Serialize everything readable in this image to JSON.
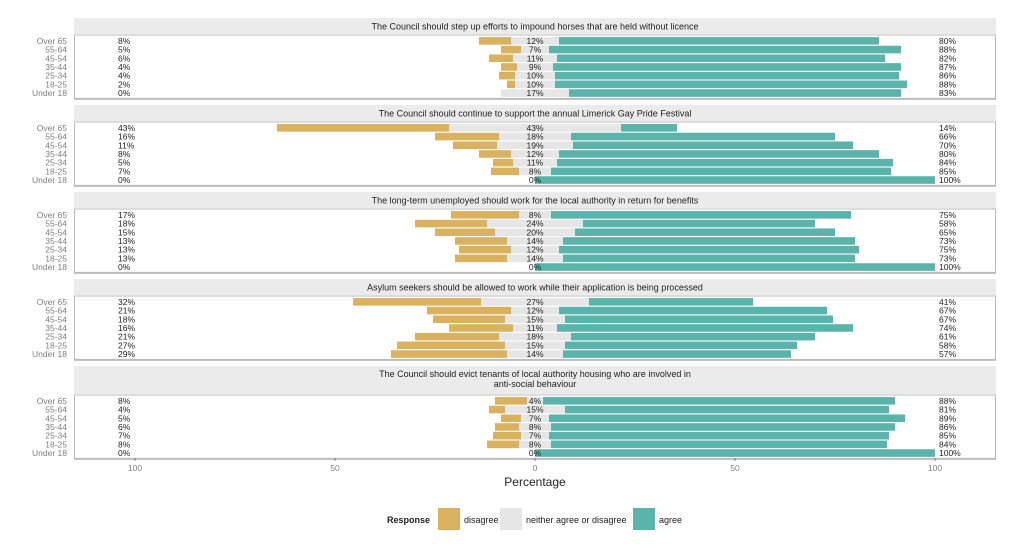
{
  "colors": {
    "disagree": "#D9B260",
    "neutral": "#E6E6E6",
    "agree": "#5AB4AC",
    "strip_bg": "#EBEBEB",
    "panel_border": "#BBBBBB",
    "axis_text": "#7F7F7F",
    "text": "#222222"
  },
  "chart_data": {
    "type": "bar",
    "orientation": "horizontal",
    "stacking": "diverging",
    "xlabel": "Percentage",
    "xlim": [
      -100,
      100
    ],
    "x_ticks": [
      {
        "value": -100,
        "label": "100"
      },
      {
        "value": -50,
        "label": "50"
      },
      {
        "value": 0,
        "label": "0"
      },
      {
        "value": 50,
        "label": "50"
      },
      {
        "value": 100,
        "label": "100"
      }
    ],
    "categories": [
      "Over 65",
      "55-64",
      "45-54",
      "35-44",
      "25-34",
      "18-25",
      "Under 18"
    ],
    "legend": {
      "title": "Response",
      "position": "bottom",
      "items": [
        {
          "key": "disagree",
          "label": "disagree"
        },
        {
          "key": "neutral",
          "label": "neither agree or disagree"
        },
        {
          "key": "agree",
          "label": "agree"
        }
      ]
    },
    "panels": [
      {
        "title": "The Council should step up efforts to impound horses that are held without licence",
        "disagree": [
          8,
          5,
          6,
          4,
          4,
          2,
          0
        ],
        "neutral": [
          12,
          7,
          11,
          9,
          10,
          10,
          17
        ],
        "agree": [
          80,
          88,
          82,
          87,
          86,
          88,
          83
        ]
      },
      {
        "title": "The Council should continue to support the annual Limerick Gay Pride Festival",
        "disagree": [
          43,
          16,
          11,
          8,
          5,
          7,
          0
        ],
        "neutral": [
          43,
          18,
          19,
          12,
          11,
          8,
          0
        ],
        "agree": [
          14,
          66,
          70,
          80,
          84,
          85,
          100
        ]
      },
      {
        "title": "The long-term unemployed should work for the local authority in return for benefits",
        "disagree": [
          17,
          18,
          15,
          13,
          13,
          13,
          0
        ],
        "neutral": [
          8,
          24,
          20,
          14,
          12,
          14,
          0
        ],
        "agree": [
          75,
          58,
          65,
          73,
          75,
          73,
          100
        ]
      },
      {
        "title": "Asylum seekers should be allowed to work while their application is being processed",
        "disagree": [
          32,
          21,
          18,
          16,
          21,
          27,
          29
        ],
        "neutral": [
          27,
          12,
          15,
          11,
          18,
          15,
          14
        ],
        "agree": [
          41,
          67,
          67,
          74,
          61,
          58,
          57
        ]
      },
      {
        "title": "The Council should evict tenants of local authority housing who are involved in anti-social behaviour",
        "disagree": [
          8,
          4,
          5,
          6,
          7,
          8,
          0
        ],
        "neutral": [
          4,
          15,
          7,
          8,
          7,
          8,
          0
        ],
        "agree": [
          88,
          81,
          89,
          86,
          85,
          84,
          100
        ]
      }
    ]
  }
}
